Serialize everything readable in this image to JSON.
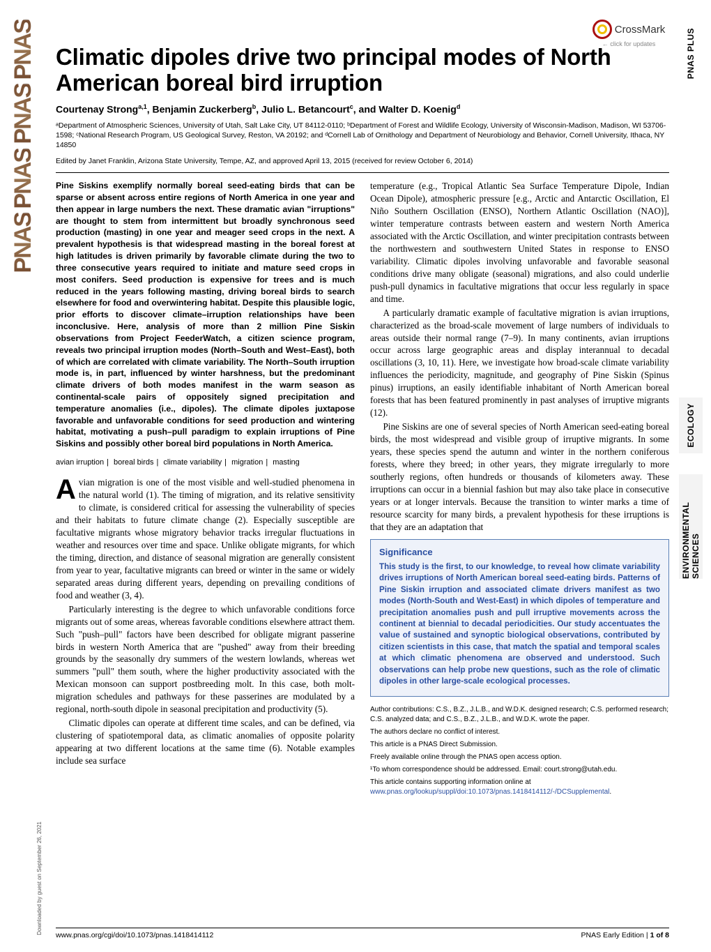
{
  "crossmark": {
    "label": "CrossMark",
    "sub": "← click for updates"
  },
  "side_tabs": {
    "plus": "PNAS PLUS",
    "eco": "ECOLOGY",
    "env": "ENVIRONMENTAL SCIENCES"
  },
  "pnas_logo": "PNAS",
  "title": "Climatic dipoles drive two principal modes of North American boreal bird irruption",
  "authors_html": "Courtenay Strong<sup>a,1</sup>, Benjamin Zuckerberg<sup>b</sup>, Julio L. Betancourt<sup>c</sup>, and Walter D. Koenig<sup>d</sup>",
  "affiliations": "ᵃDepartment of Atmospheric Sciences, University of Utah, Salt Lake City, UT 84112-0110; ᵇDepartment of Forest and Wildlife Ecology, University of Wisconsin-Madison, Madison, WI 53706-1598; ᶜNational Research Program, US Geological Survey, Reston, VA 20192; and ᵈCornell Lab of Ornithology and Department of Neurobiology and Behavior, Cornell University, Ithaca, NY 14850",
  "edited_by": "Edited by Janet Franklin, Arizona State University, Tempe, AZ, and approved April 13, 2015 (received for review October 6, 2014)",
  "abstract": "Pine Siskins exemplify normally boreal seed-eating birds that can be sparse or absent across entire regions of North America in one year and then appear in large numbers the next. These dramatic avian \"irruptions\" are thought to stem from intermittent but broadly synchronous seed production (masting) in one year and meager seed crops in the next. A prevalent hypothesis is that widespread masting in the boreal forest at high latitudes is driven primarily by favorable climate during the two to three consecutive years required to initiate and mature seed crops in most conifers. Seed production is expensive for trees and is much reduced in the years following masting, driving boreal birds to search elsewhere for food and overwintering habitat. Despite this plausible logic, prior efforts to discover climate–irruption relationships have been inconclusive. Here, analysis of more than 2 million Pine Siskin observations from Project FeederWatch, a citizen science program, reveals two principal irruption modes (North–South and West–East), both of which are correlated with climate variability. The North–South irruption mode is, in part, influenced by winter harshness, but the predominant climate drivers of both modes manifest in the warm season as continental-scale pairs of oppositely signed precipitation and temperature anomalies (i.e., dipoles). The climate dipoles juxtapose favorable and unfavorable conditions for seed production and wintering habitat, motivating a push–pull paradigm to explain irruptions of Pine Siskins and possibly other boreal bird populations in North America.",
  "keywords": [
    "avian irruption",
    "boreal birds",
    "climate variability",
    "migration",
    "masting"
  ],
  "body": {
    "p1": "vian migration is one of the most visible and well-studied phenomena in the natural world (1). The timing of migration, and its relative sensitivity to climate, is considered critical for assessing the vulnerability of species and their habitats to future climate change (2). Especially susceptible are facultative migrants whose migratory behavior tracks irregular fluctuations in weather and resources over time and space. Unlike obligate migrants, for which the timing, direction, and distance of seasonal migration are generally consistent from year to year, facultative migrants can breed or winter in the same or widely separated areas during different years, depending on prevailing conditions of food and weather (3, 4).",
    "p2": "Particularly interesting is the degree to which unfavorable conditions force migrants out of some areas, whereas favorable conditions elsewhere attract them. Such \"push–pull\" factors have been described for obligate migrant passerine birds in western North America that are \"pushed\" away from their breeding grounds by the seasonally dry summers of the western lowlands, whereas wet summers \"pull\" them south, where the higher productivity associated with the Mexican monsoon can support postbreeding molt. In this case, both molt-migration schedules and pathways for these passerines are modulated by a regional, north-south dipole in seasonal precipitation and productivity (5).",
    "p3": "Climatic dipoles can operate at different time scales, and can be defined, via clustering of spatiotemporal data, as climatic anomalies of opposite polarity appearing at two different locations at the same time (6). Notable examples include sea surface",
    "p4": "temperature (e.g., Tropical Atlantic Sea Surface Temperature Dipole, Indian Ocean Dipole), atmospheric pressure [e.g., Arctic and Antarctic Oscillation, El Niño Southern Oscillation (ENSO), Northern Atlantic Oscillation (NAO)], winter temperature contrasts between eastern and western North America associated with the Arctic Oscillation, and winter precipitation contrasts between the northwestern and southwestern United States in response to ENSO variability. Climatic dipoles involving unfavorable and favorable seasonal conditions drive many obligate (seasonal) migrations, and also could underlie push-pull dynamics in facultative migrations that occur less regularly in space and time.",
    "p5": "A particularly dramatic example of facultative migration is avian irruptions, characterized as the broad-scale movement of large numbers of individuals to areas outside their normal range (7–9). In many continents, avian irruptions occur across large geographic areas and display interannual to decadal oscillations (3, 10, 11). Here, we investigate how broad-scale climate variability influences the periodicity, magnitude, and geography of Pine Siskin (Spinus pinus) irruptions, an easily identifiable inhabitant of North American boreal forests that has been featured prominently in past analyses of irruptive migrants (12).",
    "p6": "Pine Siskins are one of several species of North American seed-eating boreal birds, the most widespread and visible group of irruptive migrants. In some years, these species spend the autumn and winter in the northern coniferous forests, where they breed; in other years, they migrate irregularly to more southerly regions, often hundreds or thousands of kilometers away. These irruptions can occur in a biennial fashion but may also take place in consecutive years or at longer intervals. Because the transition to winter marks a time of resource scarcity for many birds, a prevalent hypothesis for these irruptions is that they are an adaptation that"
  },
  "significance": {
    "title": "Significance",
    "text": "This study is the first, to our knowledge, to reveal how climate variability drives irruptions of North American boreal seed-eating birds. Patterns of Pine Siskin irruption and associated climate drivers manifest as two modes (North-South and West-East) in which dipoles of temperature and precipitation anomalies push and pull irruptive movements across the continent at biennial to decadal periodicities. Our study accentuates the value of sustained and synoptic biological observations, contributed by citizen scientists in this case, that match the spatial and temporal scales at which climatic phenomena are observed and understood. Such observations can help probe new questions, such as the role of climatic dipoles in other large-scale ecological processes."
  },
  "footnotes": {
    "authcontrib": "Author contributions: C.S., B.Z., J.L.B., and W.D.K. designed research; C.S. performed research; C.S. analyzed data; and C.S., B.Z., J.L.B., and W.D.K. wrote the paper.",
    "conflict": "The authors declare no conflict of interest.",
    "direct": "This article is a PNAS Direct Submission.",
    "open": "Freely available online through the PNAS open access option.",
    "corr_label": "¹To whom correspondence should be addressed. Email: ",
    "corr_email": "court.strong@utah.edu.",
    "supp_pre": "This article contains supporting information online at ",
    "supp_link": "www.pnas.org/lookup/suppl/doi:10.1073/pnas.1418414112/-/DCSupplemental",
    "supp_post": "."
  },
  "footer": {
    "doi": "www.pnas.org/cgi/doi/10.1073/pnas.1418414112",
    "right_pre": "PNAS Early Edition | ",
    "right_page": "1 of 8"
  },
  "download_note": "Downloaded by guest on September 26, 2021",
  "colors": {
    "link": "#2a4ea0",
    "sig_border": "#5a7fb5",
    "sig_bg": "#eef2fa"
  }
}
